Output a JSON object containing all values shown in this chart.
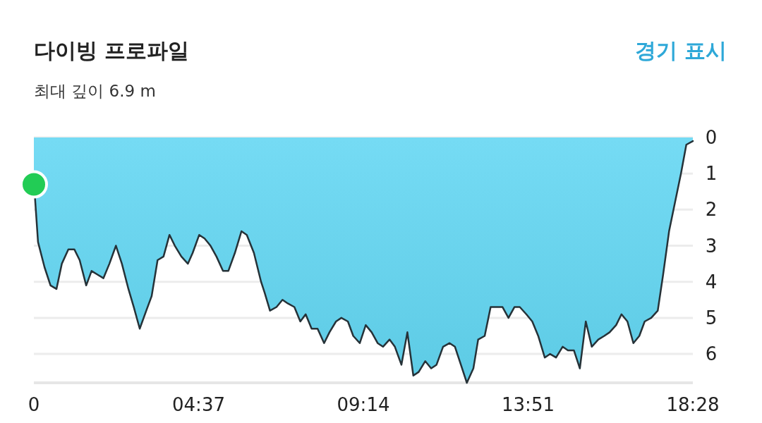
{
  "chart_data": {
    "type": "area",
    "title": "다이빙 프로파일",
    "subtitle": "최대 깊이 6.9 m",
    "annotations": [
      "경기 표시"
    ],
    "x": [
      0,
      2,
      7,
      18,
      28,
      38,
      47,
      58,
      68,
      77,
      88,
      97,
      107,
      117,
      127,
      138,
      148,
      159,
      168,
      178,
      189,
      198,
      208,
      218,
      228,
      237,
      248,
      259,
      267,
      278,
      287,
      297,
      307,
      318,
      327,
      338,
      349,
      358,
      370,
      382,
      388,
      397,
      408,
      418,
      427,
      438,
      448,
      457,
      467,
      477,
      488,
      497,
      508,
      517,
      528,
      537,
      548,
      558,
      568,
      578,
      587,
      598,
      607,
      618,
      628,
      638,
      647,
      658,
      668,
      677,
      688,
      699,
      708,
      718,
      728,
      739,
      747,
      758,
      768,
      788,
      798,
      808,
      817,
      828,
      838,
      848,
      859,
      868,
      878,
      889,
      898,
      908,
      918,
      928,
      938,
      949,
      959,
      968,
      979,
      988,
      998,
      1008,
      1018,
      1027,
      1038,
      1049,
      1058,
      1068,
      1078,
      1088,
      1097,
      1108
    ],
    "series": [
      {
        "color": "#62d6f2",
        "values": [
          1.3,
          1.7,
          2.9,
          3.6,
          4.1,
          4.2,
          3.5,
          3.1,
          3.1,
          3.4,
          4.1,
          3.7,
          3.8,
          3.9,
          3.5,
          3.0,
          3.5,
          4.2,
          4.7,
          5.3,
          4.8,
          4.4,
          3.4,
          3.3,
          2.7,
          3.0,
          3.3,
          3.5,
          3.2,
          2.7,
          2.8,
          3.0,
          3.3,
          3.7,
          3.7,
          3.2,
          2.6,
          2.7,
          3.2,
          4.0,
          4.3,
          4.8,
          4.7,
          4.5,
          4.6,
          4.7,
          5.1,
          4.9,
          5.3,
          5.3,
          5.7,
          5.4,
          5.1,
          5.0,
          5.1,
          5.5,
          5.7,
          5.2,
          5.4,
          5.7,
          5.8,
          5.6,
          5.8,
          6.3,
          5.4,
          6.6,
          6.5,
          6.2,
          6.4,
          6.3,
          5.8,
          5.7,
          5.8,
          6.3,
          6.8,
          6.4,
          5.6,
          5.5,
          4.7,
          4.7,
          5.0,
          4.7,
          4.7,
          4.9,
          5.1,
          5.5,
          6.1,
          6.0,
          6.1,
          5.8,
          5.9,
          5.9,
          6.4,
          5.1,
          5.8,
          5.6,
          5.5,
          5.4,
          5.2,
          4.9,
          5.1,
          5.7,
          5.5,
          5.1,
          5.0,
          4.8,
          3.8,
          2.6,
          1.8,
          1.0,
          0.2,
          0.1
        ]
      },
      {
        "type": "scatter",
        "color": "#22cc55",
        "x": [
          0
        ],
        "values": [
          1.3
        ]
      }
    ],
    "ylim": [
      6.8,
      0
    ],
    "yticks": [
      0,
      1,
      2,
      3,
      4,
      5,
      6
    ],
    "xlim": [
      0,
      1108
    ],
    "xticks": [
      0,
      {
        "value": 277,
        "label": "04:37"
      },
      {
        "value": 554,
        "label": "09:14"
      },
      {
        "value": 831,
        "label": "13:51"
      },
      {
        "value": 1108,
        "label": "18:28"
      }
    ],
    "grid": "y"
  }
}
